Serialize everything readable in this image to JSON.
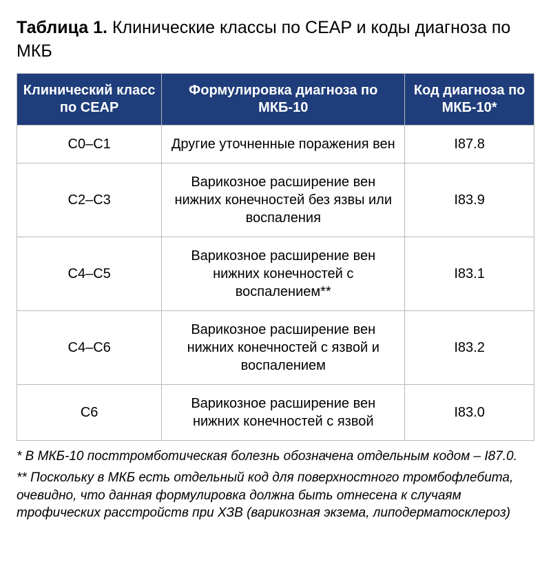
{
  "title_prefix": "Таблица 1.",
  "title_rest": " Клинические классы по CEAP и коды диагноза по МКБ",
  "table": {
    "header_bg": "#1f3d7a",
    "header_color": "#ffffff",
    "border_color": "#b8b8b8",
    "columns": [
      {
        "label": "Клинический класс по CEAP",
        "width_pct": 28
      },
      {
        "label": "Формулировка диагноза по МКБ-10",
        "width_pct": 47
      },
      {
        "label": "Код диагноза по МКБ-10*",
        "width_pct": 25
      }
    ],
    "rows": [
      {
        "class": "C0–C1",
        "diagnosis": "Другие уточненные поражения вен",
        "code": "I87.8"
      },
      {
        "class": "C2–C3",
        "diagnosis": "Варикозное расширение вен нижних конечностей без язвы или воспаления",
        "code": "I83.9"
      },
      {
        "class": "C4–C5",
        "diagnosis": "Варикозное расширение вен нижних конечностей с воспалением**",
        "code": "I83.1"
      },
      {
        "class": "C4–C6",
        "diagnosis": "Варикозное расширение вен нижних конечностей с язвой и воспалением",
        "code": "I83.2"
      },
      {
        "class": "C6",
        "diagnosis": "Варикозное расширение вен нижних конечностей с язвой",
        "code": "I83.0"
      }
    ]
  },
  "footnotes": [
    "* В МКБ-10 посттромботическая болезнь обозначена отдельным кодом – I87.0.",
    "** Поскольку в МКБ есть отдельный код для поверхностного тромбофлебита, очевидно, что данная формулировка должна быть отнесена к случаям трофических расстройств при ХЗВ (варикозная экзема, липодерматосклероз)"
  ],
  "fonts": {
    "title_fontsize": 25,
    "cell_fontsize": 20,
    "footnote_fontsize": 19
  }
}
